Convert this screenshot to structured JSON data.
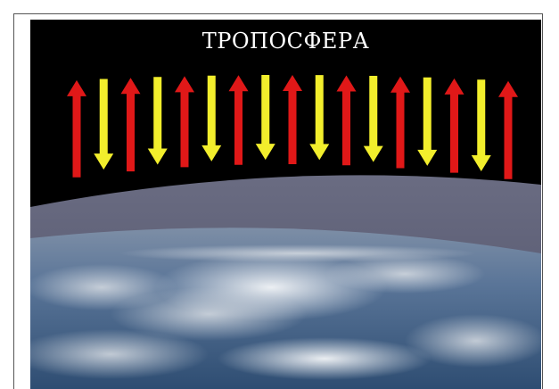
{
  "title": "ТРОПОСФЕРА",
  "arrows": [
    {
      "direction": "up",
      "color": "#e01818"
    },
    {
      "direction": "down",
      "color": "#f2ee2c"
    },
    {
      "direction": "up",
      "color": "#e01818"
    },
    {
      "direction": "down",
      "color": "#f2ee2c"
    },
    {
      "direction": "up",
      "color": "#e01818"
    },
    {
      "direction": "down",
      "color": "#f2ee2c"
    },
    {
      "direction": "up",
      "color": "#e01818"
    },
    {
      "direction": "down",
      "color": "#f2ee2c"
    },
    {
      "direction": "up",
      "color": "#e01818"
    },
    {
      "direction": "down",
      "color": "#f2ee2c"
    },
    {
      "direction": "up",
      "color": "#e01818"
    },
    {
      "direction": "down",
      "color": "#f2ee2c"
    },
    {
      "direction": "up",
      "color": "#e01818"
    },
    {
      "direction": "down",
      "color": "#f2ee2c"
    },
    {
      "direction": "up",
      "color": "#e01818"
    },
    {
      "direction": "down",
      "color": "#f2ee2c"
    },
    {
      "direction": "up",
      "color": "#e01818"
    }
  ],
  "colors": {
    "space": "#000000",
    "atmosphere": "#5d5f75",
    "ocean": "#3f5f85",
    "clouds": "#e8ecef"
  }
}
